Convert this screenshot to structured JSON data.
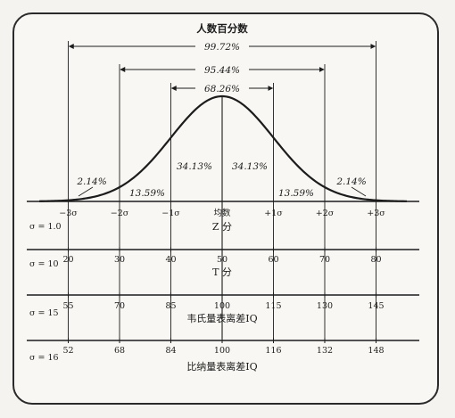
{
  "title": "人数百分数",
  "spans": [
    {
      "label": "99.72%",
      "from_sigma": -3,
      "to_sigma": 3
    },
    {
      "label": "95.44%",
      "from_sigma": -2,
      "to_sigma": 2
    },
    {
      "label": "68.26%",
      "from_sigma": -1,
      "to_sigma": 1
    }
  ],
  "region_labels": [
    {
      "text": "2.14%",
      "sigma": -2.55,
      "level": 0.16
    },
    {
      "text": "13.59%",
      "sigma": -1.5,
      "level": 0.05
    },
    {
      "text": "34.13%",
      "sigma": -0.5,
      "level": 0.42
    },
    {
      "text": "34.13%",
      "sigma": 0.5,
      "level": 0.42
    },
    {
      "text": "13.59%",
      "sigma": 1.5,
      "level": 0.05
    },
    {
      "text": "2.14%",
      "sigma": 2.55,
      "level": 0.16
    }
  ],
  "sigma_ticks": [
    {
      "sigma": -3,
      "label": "−3σ"
    },
    {
      "sigma": -2,
      "label": "−2σ"
    },
    {
      "sigma": -1,
      "label": "−1σ"
    },
    {
      "sigma": 0,
      "label": "均数"
    },
    {
      "sigma": 1,
      "label": "+1σ"
    },
    {
      "sigma": 2,
      "label": "+2σ"
    },
    {
      "sigma": 3,
      "label": "+3σ"
    }
  ],
  "scales": [
    {
      "sd_label": "σ = 1.0",
      "title": "Z 分",
      "values": []
    },
    {
      "sd_label": "σ = 10",
      "title": "T 分",
      "values": [
        "20",
        "30",
        "40",
        "50",
        "60",
        "70",
        "80"
      ]
    },
    {
      "sd_label": "σ = 15",
      "title": "韦氏量表离差IQ",
      "values": [
        "55",
        "70",
        "85",
        "100",
        "115",
        "130",
        "145"
      ]
    },
    {
      "sd_label": "σ = 16",
      "title": "比纳量表离差IQ",
      "values": [
        "52",
        "68",
        "84",
        "100",
        "116",
        "132",
        "148"
      ]
    }
  ]
}
